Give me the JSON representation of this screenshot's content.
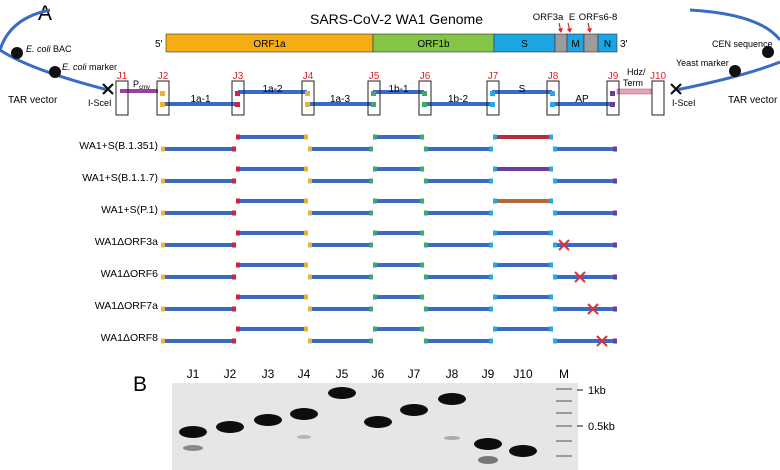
{
  "panel_a": {
    "label": "A",
    "genome_title": "SARS-CoV-2 WA1 Genome",
    "five_prime": "5'",
    "three_prime": "3'",
    "genome_segments": [
      {
        "id": "orf1a",
        "label": "ORF1a",
        "color": "#f5ad14"
      },
      {
        "id": "orf1b",
        "label": "ORF1b",
        "color": "#84c446"
      },
      {
        "id": "s",
        "label": "S",
        "color": "#1ba6e2"
      },
      {
        "id": "orf3a",
        "label": "",
        "color": "#9c9c9c"
      },
      {
        "id": "m",
        "label": "M",
        "color": "#1ba6e2"
      },
      {
        "id": "orfs6-8",
        "label": "",
        "color": "#9c9c9c"
      },
      {
        "id": "n",
        "label": "N",
        "color": "#1ba6e2"
      }
    ],
    "genome_annotations": [
      "ORF3a",
      "E",
      "ORFs6-8"
    ],
    "vector_labels": {
      "ecoli_bac_italic": "E. coli",
      "ecoli_bac_rest": " BAC",
      "ecoli_marker_italic": "E. coli",
      "ecoli_marker_rest": " marker",
      "tar_left": "TAR vector",
      "tar_right": "TAR vector",
      "cen": "CEN sequence",
      "yeast": "Yeast marker",
      "isce_left": "I-SceI",
      "isce_right": "I-SceI",
      "pcmv_main": "P",
      "pcmv_sub": "cmv",
      "hdz_line1": "Hdz/",
      "hdz_line2": "Term"
    },
    "junctions": [
      "J1",
      "J2",
      "J3",
      "J4",
      "J5",
      "J6",
      "J7",
      "J8",
      "J9",
      "J10"
    ],
    "fragments": [
      "1a-1",
      "1a-2",
      "1a-3",
      "1b-1",
      "1b-2",
      "S",
      "AP"
    ],
    "constructs": [
      {
        "label": "WA1+S(B.1.351)",
        "spike_color": "#b82b3a",
        "deletion": null
      },
      {
        "label": "WA1+S(B.1.1.7)",
        "spike_color": "#6e3d9a",
        "deletion": null
      },
      {
        "label": "WA1+S(P.1)",
        "spike_color": "#b5673a",
        "deletion": null
      },
      {
        "label": "WA1ΔORF3a",
        "spike_color": "#3a6bc4",
        "deletion": "orf3a"
      },
      {
        "label": "WA1ΔORF6",
        "spike_color": "#3a6bc4",
        "deletion": "orf6"
      },
      {
        "label": "WA1ΔORF7a",
        "spike_color": "#3a6bc4",
        "deletion": "orf7a"
      },
      {
        "label": "WA1ΔORF8",
        "spike_color": "#3a6bc4",
        "deletion": "orf8"
      }
    ]
  },
  "panel_b": {
    "label": "B",
    "lanes": [
      "J1",
      "J2",
      "J3",
      "J4",
      "J5",
      "J6",
      "J7",
      "J8",
      "J9",
      "J10",
      "M"
    ],
    "markers": [
      "1kb",
      "0.5kb"
    ]
  },
  "colors": {
    "backbone": "#3a6bc4",
    "junction_red": "#d6203e",
    "junction_yellow": "#e8b33a",
    "junction_green": "#3fa86a",
    "junction_cyan": "#2aa8df",
    "junction_purple": "#6a3c94",
    "pcmv": "#9b3fa0",
    "hdz": "#e7a3b8",
    "label_red": "#e0202a",
    "cross_red": "#e0303a"
  }
}
